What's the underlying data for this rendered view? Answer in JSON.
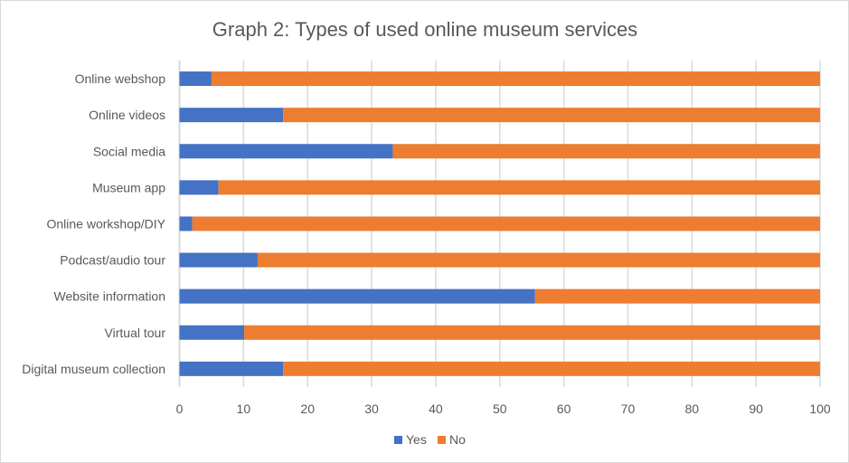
{
  "chart_data": {
    "type": "bar",
    "orientation": "horizontal",
    "stacked": true,
    "title": "Graph 2: Types of used online museum services",
    "xlabel": "",
    "ylabel": "",
    "xlim": [
      0,
      100
    ],
    "xticks": [
      0,
      10,
      20,
      30,
      40,
      50,
      60,
      70,
      80,
      90,
      100
    ],
    "grid": true,
    "legend_position": "bottom",
    "categories": [
      "Online webshop",
      "Online videos",
      "Social media",
      "Museum app",
      "Online workshop/DIY",
      "Podcast/audio tour",
      "Website information",
      "Virtual tour",
      "Digital museum collection"
    ],
    "series": [
      {
        "name": "Yes",
        "color": "#4472c4",
        "values": [
          5.0,
          16.2,
          33.3,
          6.1,
          2.0,
          12.2,
          55.5,
          10.1,
          16.2
        ]
      },
      {
        "name": "No",
        "color": "#ed7d31",
        "values": [
          95.0,
          83.8,
          66.7,
          93.9,
          98.0,
          87.8,
          44.5,
          89.9,
          83.8
        ]
      }
    ]
  }
}
